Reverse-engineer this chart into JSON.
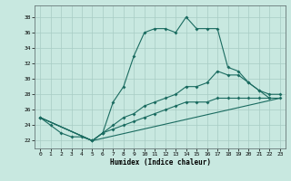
{
  "xlabel": "Humidex (Indice chaleur)",
  "background_color": "#c8e8e0",
  "grid_color": "#a8ccc4",
  "line_color": "#1a6b60",
  "xlim": [
    -0.5,
    23.5
  ],
  "ylim": [
    21.0,
    39.5
  ],
  "yticks": [
    22,
    24,
    26,
    28,
    30,
    32,
    34,
    36,
    38
  ],
  "xticks": [
    0,
    1,
    2,
    3,
    4,
    5,
    6,
    7,
    8,
    9,
    10,
    11,
    12,
    13,
    14,
    15,
    16,
    17,
    18,
    19,
    20,
    21,
    22,
    23
  ],
  "line1_x": [
    0,
    1,
    2,
    3,
    4,
    5,
    6,
    7,
    8,
    9,
    10,
    11,
    12,
    13,
    14,
    15,
    16,
    17,
    18,
    19,
    20,
    21,
    22
  ],
  "line1_y": [
    25.0,
    24.0,
    23.0,
    22.5,
    22.5,
    22.0,
    23.0,
    27.0,
    29.0,
    33.0,
    36.0,
    36.5,
    36.5,
    36.0,
    38.0,
    36.5,
    36.5,
    36.5,
    31.5,
    31.0,
    29.5,
    28.5,
    27.5
  ],
  "line2_x": [
    0,
    5,
    6,
    7,
    8,
    9,
    10,
    11,
    12,
    13,
    14,
    15,
    16,
    17,
    18,
    19,
    20,
    21,
    22,
    23
  ],
  "line2_y": [
    25.0,
    22.0,
    23.0,
    24.0,
    25.0,
    25.5,
    26.5,
    27.0,
    27.5,
    28.0,
    29.0,
    29.0,
    29.5,
    31.0,
    30.5,
    30.5,
    29.5,
    28.5,
    28.0,
    28.0
  ],
  "line3_x": [
    0,
    5,
    6,
    7,
    8,
    9,
    10,
    11,
    12,
    13,
    14,
    15,
    16,
    17,
    18,
    19,
    20,
    21,
    22,
    23
  ],
  "line3_y": [
    25.0,
    22.0,
    23.0,
    23.5,
    24.0,
    24.5,
    25.0,
    25.5,
    26.0,
    26.5,
    27.0,
    27.0,
    27.0,
    27.5,
    27.5,
    27.5,
    27.5,
    27.5,
    27.5,
    27.5
  ],
  "line4_x": [
    0,
    5,
    23
  ],
  "line4_y": [
    25.0,
    22.0,
    27.5
  ]
}
